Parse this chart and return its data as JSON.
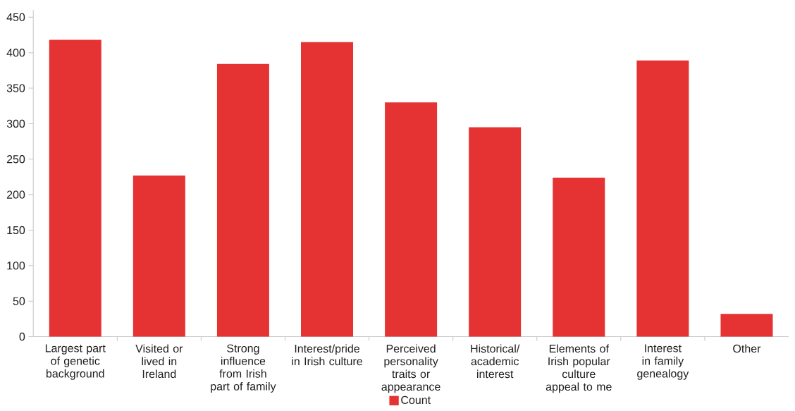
{
  "chart_data": {
    "type": "bar",
    "categories": [
      "Largest part of genetic background",
      "Visited or lived in Ireland",
      "Strong influence from Irish part of family",
      "Interest/pride in Irish culture",
      "Perceived personality traits or appearance",
      "Historical/ academic interest",
      "Elements of Irish popular culture appeal to me",
      "Interest in family genealogy",
      "Other"
    ],
    "series": [
      {
        "name": "Count",
        "color": "#e53333",
        "values": [
          418,
          227,
          384,
          415,
          330,
          295,
          224,
          389,
          32
        ]
      }
    ],
    "ylim": [
      0,
      460
    ],
    "yticks": [
      0,
      50,
      100,
      150,
      200,
      250,
      300,
      350,
      400,
      450
    ],
    "legend": "bottom",
    "grid": false
  }
}
